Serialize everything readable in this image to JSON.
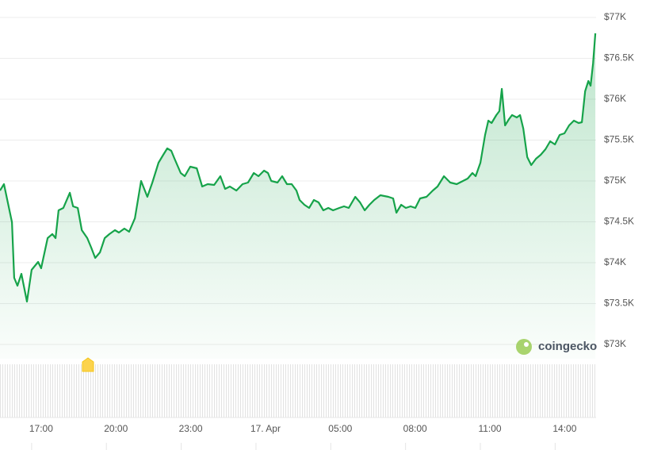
{
  "chart_data": {
    "type": "line",
    "watermark": "coingecko",
    "color": "#16a34a",
    "grid": true,
    "x": [
      15.35,
      15.51,
      15.83,
      15.92,
      16.05,
      16.21,
      16.43,
      16.62,
      16.88,
      17.0,
      17.26,
      17.45,
      17.58,
      17.7,
      17.89,
      18.15,
      18.28,
      18.47,
      18.63,
      18.85,
      19.01,
      19.17,
      19.36,
      19.55,
      19.74,
      19.96,
      20.12,
      20.34,
      20.53,
      20.76,
      21.01,
      21.26,
      21.46,
      21.71,
      21.9,
      22.06,
      22.22,
      22.35,
      22.6,
      22.76,
      22.98,
      23.24,
      23.46,
      23.68,
      23.94,
      24.19,
      24.38,
      24.57,
      24.83,
      25.08,
      25.3,
      25.53,
      25.72,
      25.94,
      26.1,
      26.23,
      26.48,
      26.67,
      26.86,
      27.05,
      27.24,
      27.37,
      27.56,
      27.75,
      27.94,
      28.13,
      28.32,
      28.52,
      28.71,
      28.96,
      29.15,
      29.34,
      29.6,
      29.79,
      29.98,
      30.17,
      30.36,
      30.61,
      30.93,
      31.12,
      31.25,
      31.44,
      31.63,
      31.82,
      32.01,
      32.2,
      32.46,
      32.71,
      32.9,
      33.16,
      33.41,
      33.67,
      33.92,
      34.11,
      34.3,
      34.43,
      34.62,
      34.81,
      34.94,
      35.07,
      35.26,
      35.38,
      35.48,
      35.61,
      35.77,
      35.89,
      36.08,
      36.21,
      36.34,
      36.5,
      36.66,
      36.85,
      37.04,
      37.23,
      37.42,
      37.61,
      37.8,
      37.99,
      38.18,
      38.37,
      38.56,
      38.69,
      38.82,
      38.95,
      39.04,
      39.14,
      39.23
    ],
    "values": [
      74883,
      74961,
      74495,
      73816,
      73718,
      73864,
      73524,
      73913,
      74010,
      73932,
      74301,
      74350,
      74301,
      74641,
      74670,
      74855,
      74689,
      74670,
      74398,
      74301,
      74184,
      74058,
      74126,
      74301,
      74350,
      74398,
      74369,
      74417,
      74379,
      74544,
      75000,
      74806,
      74981,
      75223,
      75320,
      75398,
      75369,
      75272,
      75097,
      75058,
      75175,
      75155,
      74932,
      74961,
      74951,
      75058,
      74903,
      74932,
      74883,
      74961,
      74981,
      75097,
      75058,
      75126,
      75097,
      75000,
      74981,
      75058,
      74961,
      74961,
      74883,
      74767,
      74709,
      74670,
      74767,
      74738,
      74641,
      74670,
      74641,
      74670,
      74689,
      74670,
      74806,
      74738,
      74641,
      74709,
      74767,
      74825,
      74806,
      74786,
      74612,
      74709,
      74670,
      74689,
      74670,
      74786,
      74806,
      74883,
      74932,
      75058,
      74981,
      74961,
      75000,
      75029,
      75097,
      75058,
      75223,
      75563,
      75738,
      75709,
      75806,
      75854,
      76126,
      75680,
      75757,
      75806,
      75777,
      75806,
      75641,
      75291,
      75194,
      75272,
      75320,
      75388,
      75485,
      75447,
      75563,
      75583,
      75680,
      75738,
      75709,
      75718,
      76097,
      76223,
      76165,
      76437,
      76806
    ],
    "xlim": [
      15.35,
      39.26
    ],
    "xticks": [
      {
        "value": 17,
        "label": "17:00"
      },
      {
        "value": 20,
        "label": "20:00"
      },
      {
        "value": 23,
        "label": "23:00"
      },
      {
        "value": 26,
        "label": "17. Apr"
      },
      {
        "value": 29,
        "label": "05:00"
      },
      {
        "value": 32,
        "label": "08:00"
      },
      {
        "value": 35,
        "label": "11:00"
      },
      {
        "value": 38,
        "label": "14:00"
      }
    ],
    "ylim": [
      73000,
      77000
    ],
    "yticks": [
      {
        "value": 77000,
        "label": "$77K"
      },
      {
        "value": 76500,
        "label": "$76.5K"
      },
      {
        "value": 76000,
        "label": "$76K"
      },
      {
        "value": 75500,
        "label": "$75.5K"
      },
      {
        "value": 75000,
        "label": "$75K"
      },
      {
        "value": 74500,
        "label": "$74.5K"
      },
      {
        "value": 74000,
        "label": "$74K"
      },
      {
        "value": 73500,
        "label": "$73.5K"
      },
      {
        "value": 73000,
        "label": "$73K"
      }
    ]
  }
}
